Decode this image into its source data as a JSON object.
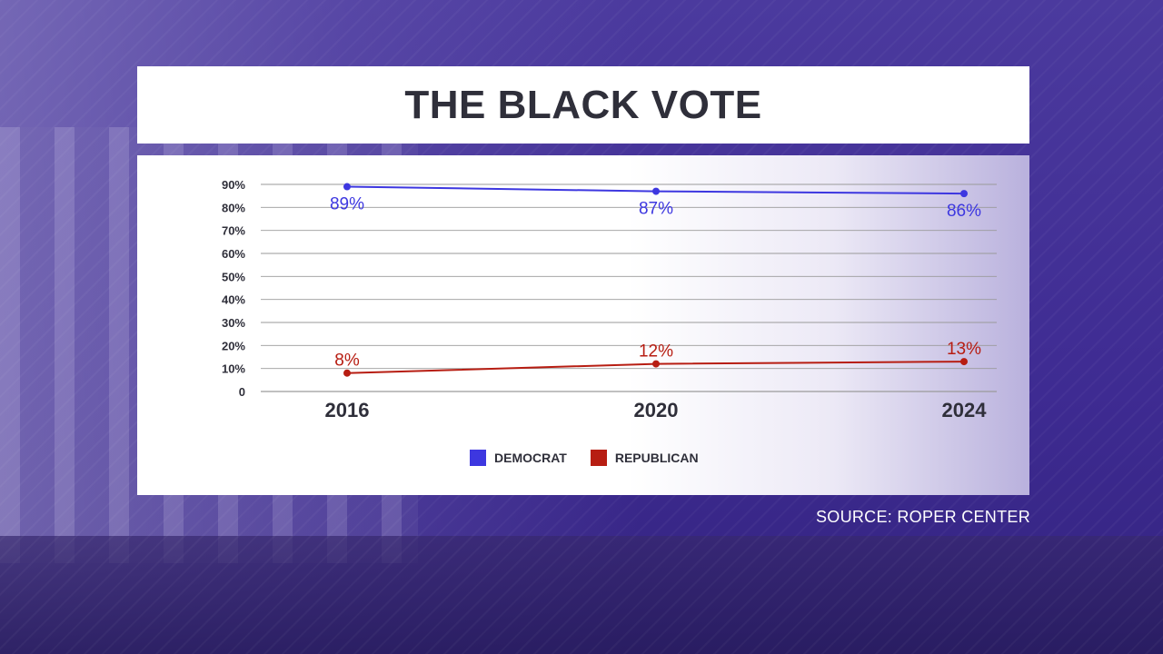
{
  "title": "THE BLACK VOTE",
  "source": "SOURCE: ROPER CENTER",
  "colors": {
    "democrat": "#3d37e0",
    "republican": "#b71d12",
    "grid": "#9a9a9a",
    "text": "#2f2f3a"
  },
  "chart_data": {
    "type": "line",
    "title": "THE BLACK VOTE",
    "x": [
      "2016",
      "2020",
      "2024"
    ],
    "y_ticks": [
      "0",
      "10%",
      "20%",
      "30%",
      "40%",
      "50%",
      "60%",
      "70%",
      "80%",
      "90%"
    ],
    "ylim": [
      0,
      90
    ],
    "grid": true,
    "legend_position": "bottom",
    "series": [
      {
        "name": "DEMOCRAT",
        "values": [
          89,
          87,
          86
        ],
        "labels": [
          "89%",
          "87%",
          "86%"
        ]
      },
      {
        "name": "REPUBLICAN",
        "values": [
          8,
          12,
          13
        ],
        "labels": [
          "8%",
          "12%",
          "13%"
        ]
      }
    ]
  }
}
